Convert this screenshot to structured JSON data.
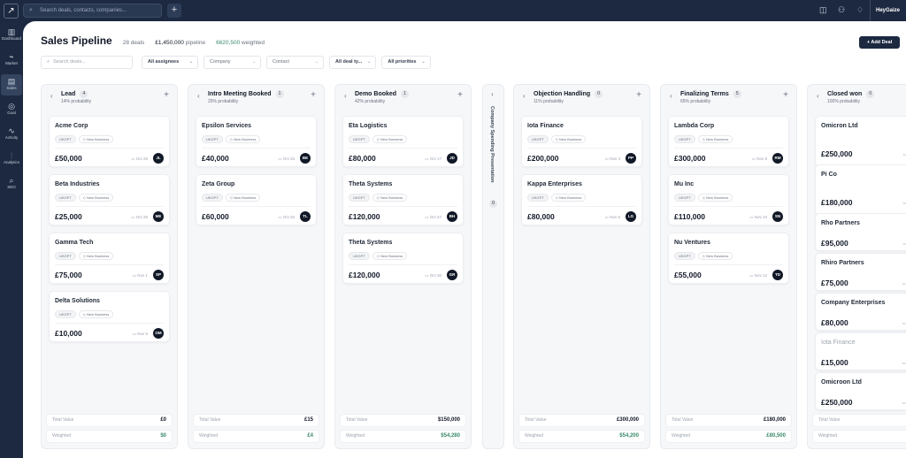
{
  "topbar": {
    "search_placeholder": "Search deals, contacts, companies...",
    "user": "HeyGaize"
  },
  "sidebar": [
    {
      "icon": "▥",
      "label": "Dashboard"
    },
    {
      "icon": "⌁",
      "label": "Market"
    },
    {
      "icon": "▤",
      "label": "Sales",
      "active": true
    },
    {
      "icon": "◎",
      "label": "Goal"
    },
    {
      "icon": "∿",
      "label": "Activity"
    },
    {
      "icon": "⫶",
      "label": "Analytics"
    },
    {
      "icon": "⌕",
      "label": "SEO"
    }
  ],
  "header": {
    "title": "Sales Pipeline",
    "deals": "28 deals",
    "pipeline_value": "£1,450,000",
    "pipeline_label": "pipeline",
    "weighted_value": "6620,500",
    "weighted_label": "weighted",
    "add_label": "+ Add Deal"
  },
  "filters": {
    "search_placeholder": "Search deals...",
    "assignees": "All assignees",
    "company": "Company",
    "contact": "Contact",
    "deal_type": "All deal ty...",
    "priorities": "All priorities"
  },
  "columns": [
    {
      "name": "Lead",
      "probability": "14% probability",
      "count": "4",
      "total_label": "Total Value",
      "total": "£0",
      "weighted_label": "Weighted",
      "weighted": "$0",
      "cards": [
        {
          "company": "Acme Corp",
          "amount": "£50,000",
          "date": "Oct 25",
          "initials": "JL"
        },
        {
          "company": "Beta Industries",
          "amount": "£25,000",
          "date": "Oct 25",
          "initials": "ME"
        },
        {
          "company": "Gamma Tech",
          "amount": "£75,000",
          "date": "Nov 1",
          "initials": "SP"
        },
        {
          "company": "Delta Solutions",
          "amount": "£10,000",
          "date": "Nov 5",
          "initials": "OM"
        }
      ]
    },
    {
      "name": "Intro Meeting Booked",
      "probability": "25% probability",
      "count": "1",
      "total_label": "Total Value",
      "total": "£15",
      "weighted_label": "Weighted",
      "weighted": "£4",
      "cards": [
        {
          "company": "Epsilon Services",
          "amount": "£40,000",
          "date": "Oct 25",
          "initials": "BE"
        },
        {
          "company": "Zeta Group",
          "amount": "£60,000",
          "date": "Oct 25",
          "initials": "TL"
        }
      ]
    },
    {
      "name": "Demo Booked",
      "probability": "42% probability",
      "count": "1",
      "total_label": "Total Value",
      "total": "$150,000",
      "weighted_label": "Weighted",
      "weighted": "$54,280",
      "cards": [
        {
          "company": "Eta Logistics",
          "amount": "£80,000",
          "date": "Oct 17",
          "initials": "JD"
        },
        {
          "company": "Theta Systems",
          "amount": "£120,000",
          "date": "Oct 27",
          "initials": "BH"
        },
        {
          "company": "Theta Systems",
          "amount": "£120,000",
          "date": "Oct 30",
          "initials": "GR"
        }
      ]
    },
    {
      "name": "Objection Handling",
      "probability": "11% probability",
      "count": "0",
      "total_label": "Total Value",
      "total": "£300,000",
      "weighted_label": "Weighted",
      "weighted": "$54,200",
      "cards": [
        {
          "company": "Iota Finance",
          "amount": "£200,000",
          "date": "Nov 3",
          "initials": "PP"
        },
        {
          "company": "Kappa Enterprises",
          "amount": "£80,000",
          "date": "Nov 6",
          "initials": "LG"
        }
      ]
    },
    {
      "name": "Finalizing Terms",
      "probability": "65% probability",
      "count": "5",
      "total_label": "Total Value",
      "total": "£180,000",
      "weighted_label": "Weighted",
      "weighted": "£80,500",
      "cards": [
        {
          "company": "Lambda Corp",
          "amount": "£300,000",
          "date": "Nov 8",
          "initials": "RM"
        },
        {
          "company": "Mu Inc",
          "amount": "£110,000",
          "date": "Nov 10",
          "initials": "SN"
        },
        {
          "company": "Nu Ventures",
          "amount": "£55,000",
          "date": "Nov 12",
          "initials": "TD"
        }
      ]
    },
    {
      "name": "Closed won",
      "probability": "100% probability",
      "count": "0",
      "total_label": "Total Value",
      "total": "",
      "weighted_label": "Weighted",
      "weighted": "",
      "cards": [
        {
          "company": "Omicron Ltd",
          "amount": "£250,000",
          "date": "Oct"
        },
        {
          "company": "Pi Co",
          "amount": "£180,000",
          "date": "Oct"
        },
        {
          "company": "Rho Partners",
          "amount": "£95,000",
          "date": "Oct"
        },
        {
          "company": "Rhiro Partners",
          "amount": "£75,000",
          "date": "Nov"
        },
        {
          "company": "Company Enterprises",
          "amount": "£80,000",
          "date": "Nov"
        },
        {
          "company": "Iota Finance",
          "amount": "£15,000",
          "date": "Nov",
          "dim": true
        },
        {
          "company": "Omicroon Ltd",
          "amount": "£250,000",
          "date": "Nov"
        }
      ]
    }
  ],
  "collapsed_column": {
    "name": "Company Spending Presentation",
    "count": "0"
  },
  "tags": {
    "type": "UKGPT",
    "category": "New Business"
  },
  "colors": {
    "navy": "#1c2940",
    "green": "#3c8a6b"
  }
}
